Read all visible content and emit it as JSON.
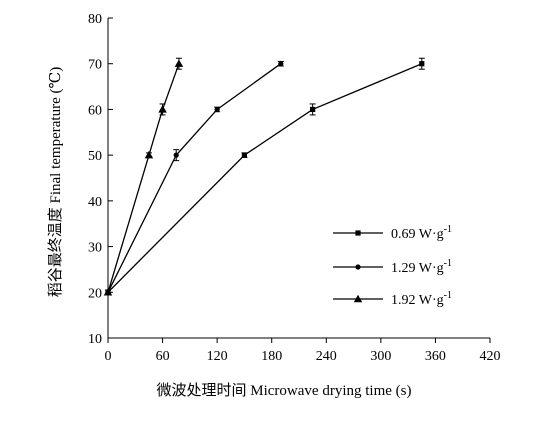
{
  "chart_data": {
    "type": "line",
    "xlabel": "微波处理时间 Microwave drying time (s)",
    "ylabel": "稻谷最终温度 Final temperature (℃)",
    "xlim": [
      0,
      420
    ],
    "ylim": [
      10,
      80
    ],
    "xticks": [
      0,
      60,
      120,
      180,
      240,
      300,
      360,
      420
    ],
    "yticks": [
      10,
      20,
      30,
      40,
      50,
      60,
      70,
      80
    ],
    "grid": false,
    "legend_position": "lower-right",
    "series": [
      {
        "name_main": "0.69 W·g",
        "name_sup": "-1",
        "marker": "square",
        "x": [
          0,
          150,
          225,
          345
        ],
        "y": [
          20,
          50,
          60,
          70
        ],
        "err": [
          0.5,
          0.5,
          1.2,
          1.2
        ]
      },
      {
        "name_main": "1.29 W·g",
        "name_sup": "-1",
        "marker": "circle",
        "x": [
          0,
          75,
          120,
          190
        ],
        "y": [
          20,
          50,
          60,
          70
        ],
        "err": [
          0.5,
          1.2,
          0.5,
          0.5
        ]
      },
      {
        "name_main": "1.92 W·g",
        "name_sup": "-1",
        "marker": "triangle",
        "x": [
          0,
          45,
          60,
          78
        ],
        "y": [
          20,
          50,
          60,
          70
        ],
        "err": [
          0.5,
          0.5,
          1.2,
          1.2
        ]
      }
    ]
  }
}
